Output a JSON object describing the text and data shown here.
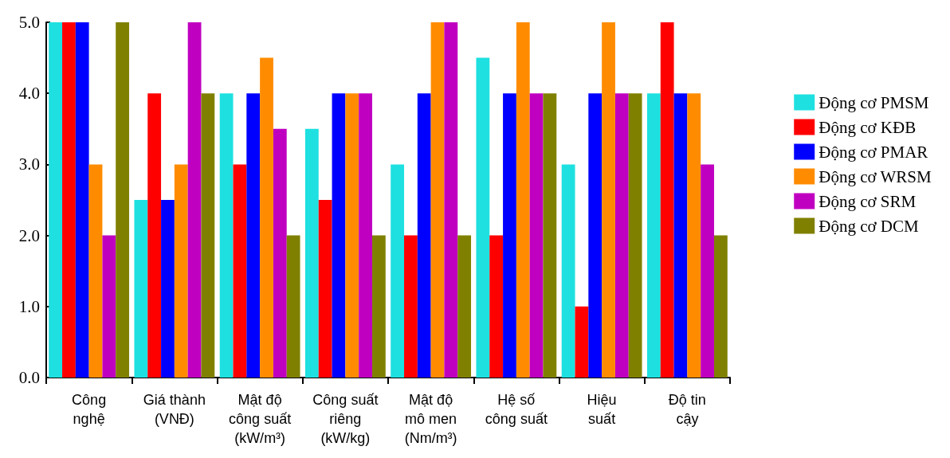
{
  "chart_data": {
    "type": "bar",
    "categories": [
      "Công\nnghệ",
      "Giá thành\n(VNĐ)",
      "Mật độ\ncông suất\n(kW/m³)",
      "Công suất\nriêng\n(kW/kg)",
      "Mật độ\nmô men\n(Nm/m³)",
      "Hệ số\ncông suất",
      "Hiệu\nsuất",
      "Độ tin\ncậy"
    ],
    "series": [
      {
        "name": "Động cơ PMSM",
        "color": "#1ee0e0",
        "values": [
          5,
          2.5,
          4,
          3.5,
          3,
          4.5,
          3,
          4
        ]
      },
      {
        "name": "Động cơ KĐB",
        "color": "#ff0000",
        "values": [
          5,
          4,
          3,
          2.5,
          2,
          2,
          1,
          5
        ]
      },
      {
        "name": "Động cơ PMAR",
        "color": "#0000ff",
        "values": [
          5,
          2.5,
          4,
          4,
          4,
          4,
          4,
          4
        ]
      },
      {
        "name": "Động cơ WRSM",
        "color": "#ff8c00",
        "values": [
          3,
          3,
          4.5,
          4,
          5,
          5,
          5,
          4
        ]
      },
      {
        "name": "Động cơ SRM",
        "color": "#c000c0",
        "values": [
          2,
          5,
          3.5,
          4,
          5,
          4,
          4,
          3
        ]
      },
      {
        "name": "Động cơ DCM",
        "color": "#808000",
        "values": [
          5,
          4,
          2,
          2,
          2,
          4,
          4,
          2
        ]
      }
    ],
    "ylim": [
      0,
      5
    ],
    "yticks": [
      {
        "value": 0,
        "label": "0.0"
      },
      {
        "value": 1,
        "label": "1.0"
      },
      {
        "value": 2,
        "label": "2.0"
      },
      {
        "value": 3,
        "label": "3.0"
      },
      {
        "value": 4,
        "label": "4.0"
      },
      {
        "value": 5,
        "label": "5.0"
      }
    ],
    "grid": false,
    "legend": "right"
  }
}
